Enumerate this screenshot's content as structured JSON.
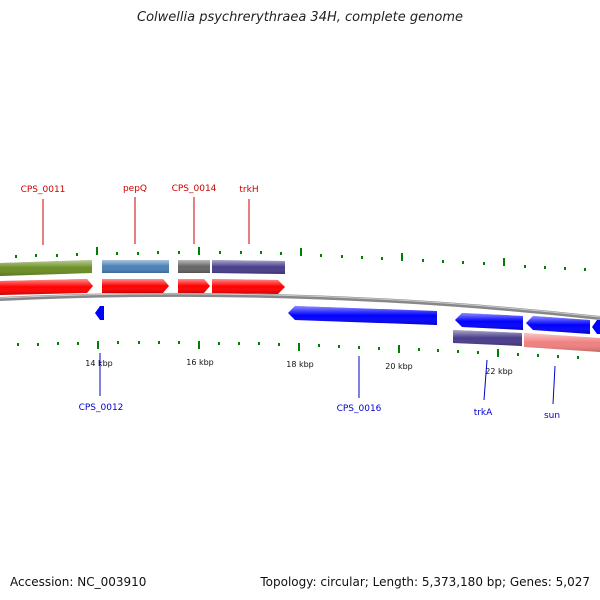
{
  "title": "Colwellia psychrerythraea 34H, complete genome",
  "footer": {
    "accession": "Accession: NC_003910",
    "stats": "Topology: circular; Length: 5,373,180 bp; Genes: 5,027"
  },
  "colors": {
    "forward_cds": "#ff0000",
    "reverse_cds": "#0000ff",
    "feature_olive": "#6b8e23",
    "feature_steelblue": "#4a7fb8",
    "feature_gray": "#666666",
    "feature_slate": "#483d8b",
    "feature_salmon": "#f08080",
    "tick": "#008000",
    "backbone": "#888888",
    "label_forward": "#cc0000",
    "label_reverse": "#0000cc"
  },
  "tick_labels": [
    "14 kbp",
    "16 kbp",
    "18 kbp",
    "20 kbp",
    "22 kbp"
  ],
  "gene_labels_top": [
    "CPS_0011",
    "pepQ",
    "CPS_0014",
    "trkH"
  ],
  "gene_labels_bottom": [
    "CPS_0012",
    "CPS_0016",
    "trkA",
    "sun"
  ]
}
